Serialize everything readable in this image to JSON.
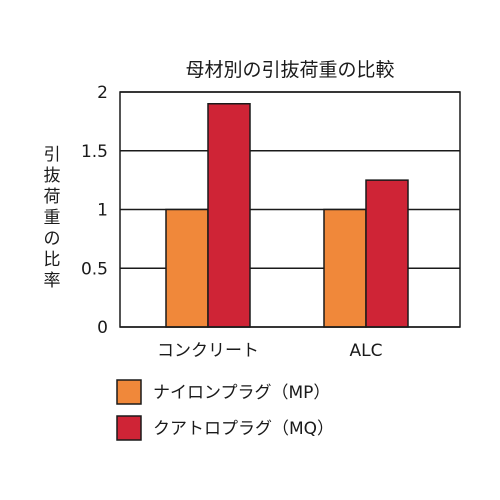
{
  "chart_data": {
    "type": "bar",
    "title": "母材別の引抜荷重の比較",
    "ylabel": "引抜荷重の比率",
    "xlabel": "",
    "categories": [
      "コンクリート",
      "ALC"
    ],
    "series": [
      {
        "name": "ナイロンプラグ（MP）",
        "color": "#f0883a",
        "values": [
          1,
          1
        ]
      },
      {
        "name": "クアトロプラグ（MQ）",
        "color": "#cf2436",
        "values": [
          1.9,
          1.25
        ]
      }
    ],
    "ylim": [
      0,
      2
    ],
    "yticks": [
      "0",
      "0.5",
      "1",
      "1.5",
      "2"
    ],
    "grid": true,
    "legend_position": "bottom-left"
  }
}
